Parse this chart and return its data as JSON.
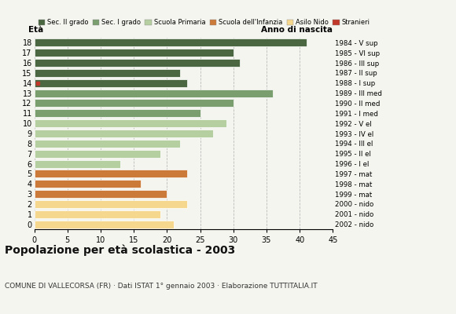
{
  "ages": [
    18,
    17,
    16,
    15,
    14,
    13,
    12,
    11,
    10,
    9,
    8,
    7,
    6,
    5,
    4,
    3,
    2,
    1,
    0
  ],
  "values": [
    41,
    30,
    31,
    22,
    23,
    36,
    30,
    25,
    29,
    27,
    22,
    19,
    13,
    23,
    16,
    20,
    23,
    19,
    21
  ],
  "anno_nascita_by_age": {
    "18": "1984 - V sup",
    "17": "1985 - VI sup",
    "16": "1986 - III sup",
    "15": "1987 - II sup",
    "14": "1988 - I sup",
    "13": "1989 - III med",
    "12": "1990 - II med",
    "11": "1991 - I med",
    "10": "1992 - V el",
    "9": "1993 - IV el",
    "8": "1994 - III el",
    "7": "1995 - II el",
    "6": "1996 - I el",
    "5": "1997 - mat",
    "4": "1998 - mat",
    "3": "1999 - mat",
    "2": "2000 - nido",
    "1": "2001 - nido",
    "0": "2002 - nido"
  },
  "stranieri_ages": [
    14
  ],
  "color_by_age": {
    "18": "#4a6741",
    "17": "#4a6741",
    "16": "#4a6741",
    "15": "#4a6741",
    "14": "#4a6741",
    "13": "#7a9e6e",
    "12": "#7a9e6e",
    "11": "#7a9e6e",
    "10": "#b5cfa0",
    "9": "#b5cfa0",
    "8": "#b5cfa0",
    "7": "#b5cfa0",
    "6": "#b5cfa0",
    "5": "#cc7a3a",
    "4": "#cc7a3a",
    "3": "#cc7a3a",
    "2": "#f5d78e",
    "1": "#f5d78e",
    "0": "#f5d78e"
  },
  "stranieri_color": "#c0392b",
  "title": "Popolazione per età scolastica - 2003",
  "subtitle": "COMUNE DI VALLECORSA (FR) · Dati ISTAT 1° gennaio 2003 · Elaborazione TUTTITALIA.IT",
  "label_eta": "Età",
  "label_anno": "Anno di nascita",
  "xlim": [
    0,
    45
  ],
  "xticks": [
    0,
    5,
    10,
    15,
    20,
    25,
    30,
    35,
    40,
    45
  ],
  "background_color": "#f5f5f0",
  "grid_color": "#bbbbbb",
  "legend_items": [
    {
      "label": "Sec. II grado",
      "color": "#4a6741"
    },
    {
      "label": "Sec. I grado",
      "color": "#7a9e6e"
    },
    {
      "label": "Scuola Primaria",
      "color": "#b5cfa0"
    },
    {
      "label": "Scuola dell'Infanzia",
      "color": "#cc7a3a"
    },
    {
      "label": "Asilo Nido",
      "color": "#f5d78e"
    },
    {
      "label": "Stranieri",
      "color": "#c0392b"
    }
  ]
}
